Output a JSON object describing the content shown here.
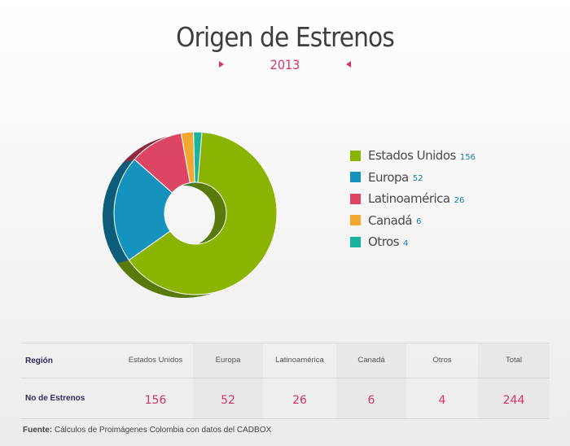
{
  "title": "Origen de Estrenos",
  "year": "2013",
  "colors": {
    "accent": "#d6336c",
    "value_blue": "#1a78b4"
  },
  "chart_data": {
    "type": "pie",
    "title": "Origen de Estrenos",
    "subtitle": "2013",
    "categories": [
      "Estados Unidos",
      "Europa",
      "Latinoamérica",
      "Canadá",
      "Otros"
    ],
    "values": [
      156,
      52,
      26,
      6,
      4
    ],
    "colors": [
      "#8ab400",
      "#1592bd",
      "#dc4564",
      "#f0a830",
      "#19b49e"
    ],
    "side_colors": [
      "#5a7a0c",
      "#0e5d7a",
      "#8e2a40",
      "#a87420",
      "#118070"
    ],
    "style": "3d-donut",
    "legend_position": "right"
  },
  "legend": [
    {
      "name": "Estados Unidos",
      "value": "156"
    },
    {
      "name": "Europa",
      "value": "52"
    },
    {
      "name": "Latinoamérica",
      "value": "26"
    },
    {
      "name": "Canadá",
      "value": "6"
    },
    {
      "name": "Otros",
      "value": "4"
    }
  ],
  "table": {
    "row_header_label": "Región",
    "row_values_label": "No de Estrenos",
    "headers": [
      "Estados Unidos",
      "Europa",
      "Latinoamérica",
      "Canadá",
      "Otros",
      "Total"
    ],
    "values": [
      "156",
      "52",
      "26",
      "6",
      "4",
      "244"
    ]
  },
  "source": {
    "label": "Fuente:",
    "text": "Cálculos de Proimágenes Colombia con datos del CADBOX"
  }
}
